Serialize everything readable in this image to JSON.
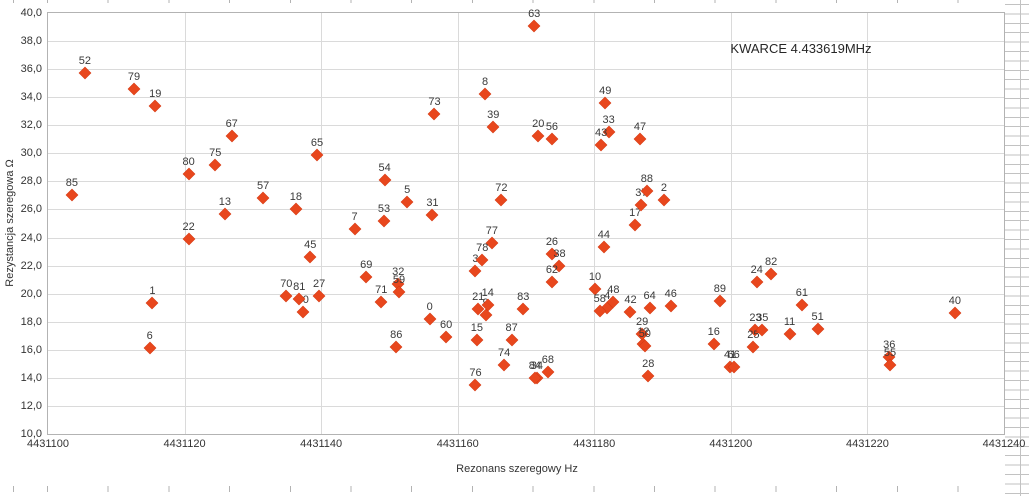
{
  "chart_data": {
    "type": "scatter",
    "title": "KWARCE 4.433619MHz",
    "xlabel": "Rezonans szeregowy Hz",
    "ylabel": "Rezystancja szeregowa Ω",
    "xlim": [
      4431100,
      4431240
    ],
    "ylim": [
      10,
      40
    ],
    "grid": true,
    "legend": false,
    "marker_color": "#e8471d",
    "x_ticks": [
      4431100,
      4431120,
      4431140,
      4431160,
      4431180,
      4431200,
      4431220,
      4431240
    ],
    "x_tick_labels": [
      "4431100",
      "4431120",
      "4431140",
      "4431160",
      "4431180",
      "4431200",
      "4431220",
      "4431240"
    ],
    "y_ticks": [
      40,
      38,
      36,
      34,
      32,
      30,
      28,
      26,
      24,
      22,
      20,
      18,
      16,
      14,
      12,
      10
    ],
    "y_tick_labels": [
      "40,0",
      "38,0",
      "36,0",
      "34,0",
      "32,0",
      "30,0",
      "28,0",
      "26,0",
      "24,0",
      "22,0",
      "20,0",
      "18,0",
      "16,0",
      "14,0",
      "12,0",
      "10,0"
    ],
    "series": [
      {
        "name": "kwarce",
        "points": [
          {
            "n": "0",
            "x": 4431155.9,
            "y": 18.2
          },
          {
            "n": "1",
            "x": 4431115.3,
            "y": 19.3
          },
          {
            "n": "2",
            "x": 4431190.2,
            "y": 26.7
          },
          {
            "n": "3",
            "x": 4431162.6,
            "y": 21.6
          },
          {
            "n": "4",
            "x": 4431181.9,
            "y": 19.0
          },
          {
            "n": "5",
            "x": 4431152.6,
            "y": 26.5
          },
          {
            "n": "6",
            "x": 4431114.9,
            "y": 16.1
          },
          {
            "n": "7",
            "x": 4431144.9,
            "y": 24.6
          },
          {
            "n": "8",
            "x": 4431164.0,
            "y": 34.2
          },
          {
            "n": "9",
            "x": 4431164.1,
            "y": 18.5
          },
          {
            "n": "10",
            "x": 4431180.1,
            "y": 20.3
          },
          {
            "n": "11",
            "x": 4431208.6,
            "y": 17.1
          },
          {
            "n": "12",
            "x": 4431187.2,
            "y": 16.4
          },
          {
            "n": "13",
            "x": 4431125.9,
            "y": 25.7
          },
          {
            "n": "14",
            "x": 4431164.4,
            "y": 19.2
          },
          {
            "n": "15",
            "x": 4431162.8,
            "y": 16.7
          },
          {
            "n": "16",
            "x": 4431197.5,
            "y": 16.4
          },
          {
            "n": "17",
            "x": 4431186.0,
            "y": 24.9
          },
          {
            "n": "18",
            "x": 4431136.3,
            "y": 26.0
          },
          {
            "n": "19",
            "x": 4431115.7,
            "y": 33.4
          },
          {
            "n": "20",
            "x": 4431171.8,
            "y": 31.2
          },
          {
            "n": "21",
            "x": 4431163.0,
            "y": 18.9
          },
          {
            "n": "22",
            "x": 4431120.6,
            "y": 23.9
          },
          {
            "n": "23",
            "x": 4431203.6,
            "y": 17.4
          },
          {
            "n": "24",
            "x": 4431203.8,
            "y": 20.8
          },
          {
            "n": "25",
            "x": 4431203.3,
            "y": 16.2
          },
          {
            "n": "26",
            "x": 4431173.8,
            "y": 22.8
          },
          {
            "n": "27",
            "x": 4431139.7,
            "y": 19.8
          },
          {
            "n": "28",
            "x": 4431187.9,
            "y": 14.1
          },
          {
            "n": "29",
            "x": 4431187.0,
            "y": 17.1
          },
          {
            "n": "30",
            "x": 4431137.3,
            "y": 18.7
          },
          {
            "n": "31",
            "x": 4431156.3,
            "y": 25.6
          },
          {
            "n": "32",
            "x": 4431151.3,
            "y": 20.7
          },
          {
            "n": "33",
            "x": 4431182.1,
            "y": 31.5
          },
          {
            "n": "34",
            "x": 4431171.6,
            "y": 14.0
          },
          {
            "n": "35",
            "x": 4431204.6,
            "y": 17.4
          },
          {
            "n": "36",
            "x": 4431223.2,
            "y": 15.5
          },
          {
            "n": "37",
            "x": 4431186.9,
            "y": 26.3
          },
          {
            "n": "38",
            "x": 4431174.9,
            "y": 22.0
          },
          {
            "n": "39",
            "x": 4431165.2,
            "y": 31.9
          },
          {
            "n": "40",
            "x": 4431232.8,
            "y": 18.6
          },
          {
            "n": "41",
            "x": 4431199.9,
            "y": 14.8
          },
          {
            "n": "42",
            "x": 4431185.3,
            "y": 18.7
          },
          {
            "n": "43",
            "x": 4431181.0,
            "y": 30.6
          },
          {
            "n": "44",
            "x": 4431181.4,
            "y": 23.3
          },
          {
            "n": "45",
            "x": 4431138.4,
            "y": 22.6
          },
          {
            "n": "46",
            "x": 4431191.2,
            "y": 19.1
          },
          {
            "n": "47",
            "x": 4431186.7,
            "y": 31.0
          },
          {
            "n": "48",
            "x": 4431182.8,
            "y": 19.4
          },
          {
            "n": "49",
            "x": 4431181.6,
            "y": 33.6
          },
          {
            "n": "50",
            "x": 4431187.4,
            "y": 16.3
          },
          {
            "n": "51",
            "x": 4431212.7,
            "y": 17.5
          },
          {
            "n": "52",
            "x": 4431105.4,
            "y": 35.7
          },
          {
            "n": "53",
            "x": 4431149.2,
            "y": 25.2
          },
          {
            "n": "54",
            "x": 4431149.3,
            "y": 28.1
          },
          {
            "n": "55",
            "x": 4431223.3,
            "y": 14.9
          },
          {
            "n": "56",
            "x": 4431173.8,
            "y": 31.0
          },
          {
            "n": "57",
            "x": 4431131.5,
            "y": 26.8
          },
          {
            "n": "58",
            "x": 4431180.8,
            "y": 18.8
          },
          {
            "n": "59",
            "x": 4431151.4,
            "y": 20.1
          },
          {
            "n": "60",
            "x": 4431158.3,
            "y": 16.9
          },
          {
            "n": "61",
            "x": 4431210.4,
            "y": 19.2
          },
          {
            "n": "62",
            "x": 4431173.8,
            "y": 20.8
          },
          {
            "n": "63",
            "x": 4431171.2,
            "y": 39.1
          },
          {
            "n": "64",
            "x": 4431188.1,
            "y": 19.0
          },
          {
            "n": "65",
            "x": 4431139.4,
            "y": 29.9
          },
          {
            "n": "66",
            "x": 4431200.4,
            "y": 14.8
          },
          {
            "n": "67",
            "x": 4431126.9,
            "y": 31.2
          },
          {
            "n": "68",
            "x": 4431173.2,
            "y": 14.4
          },
          {
            "n": "69",
            "x": 4431146.6,
            "y": 21.2
          },
          {
            "n": "70",
            "x": 4431134.9,
            "y": 19.8
          },
          {
            "n": "71",
            "x": 4431148.8,
            "y": 19.4
          },
          {
            "n": "72",
            "x": 4431166.4,
            "y": 26.7
          },
          {
            "n": "73",
            "x": 4431156.6,
            "y": 32.8
          },
          {
            "n": "74",
            "x": 4431166.8,
            "y": 14.9
          },
          {
            "n": "75",
            "x": 4431124.5,
            "y": 29.2
          },
          {
            "n": "76",
            "x": 4431162.6,
            "y": 13.5
          },
          {
            "n": "77",
            "x": 4431165.0,
            "y": 23.6
          },
          {
            "n": "78",
            "x": 4431163.6,
            "y": 22.4
          },
          {
            "n": "79",
            "x": 4431112.6,
            "y": 34.6
          },
          {
            "n": "80",
            "x": 4431120.6,
            "y": 28.5
          },
          {
            "n": "81",
            "x": 4431136.8,
            "y": 19.6
          },
          {
            "n": "82",
            "x": 4431205.9,
            "y": 21.4
          },
          {
            "n": "83",
            "x": 4431169.6,
            "y": 18.9
          },
          {
            "n": "84",
            "x": 4431171.3,
            "y": 14.0
          },
          {
            "n": "85",
            "x": 4431103.5,
            "y": 27.0
          },
          {
            "n": "86",
            "x": 4431151.0,
            "y": 16.2
          },
          {
            "n": "87",
            "x": 4431167.9,
            "y": 16.7
          },
          {
            "n": "88",
            "x": 4431187.7,
            "y": 27.3
          },
          {
            "n": "89",
            "x": 4431198.4,
            "y": 19.5
          }
        ]
      }
    ]
  }
}
